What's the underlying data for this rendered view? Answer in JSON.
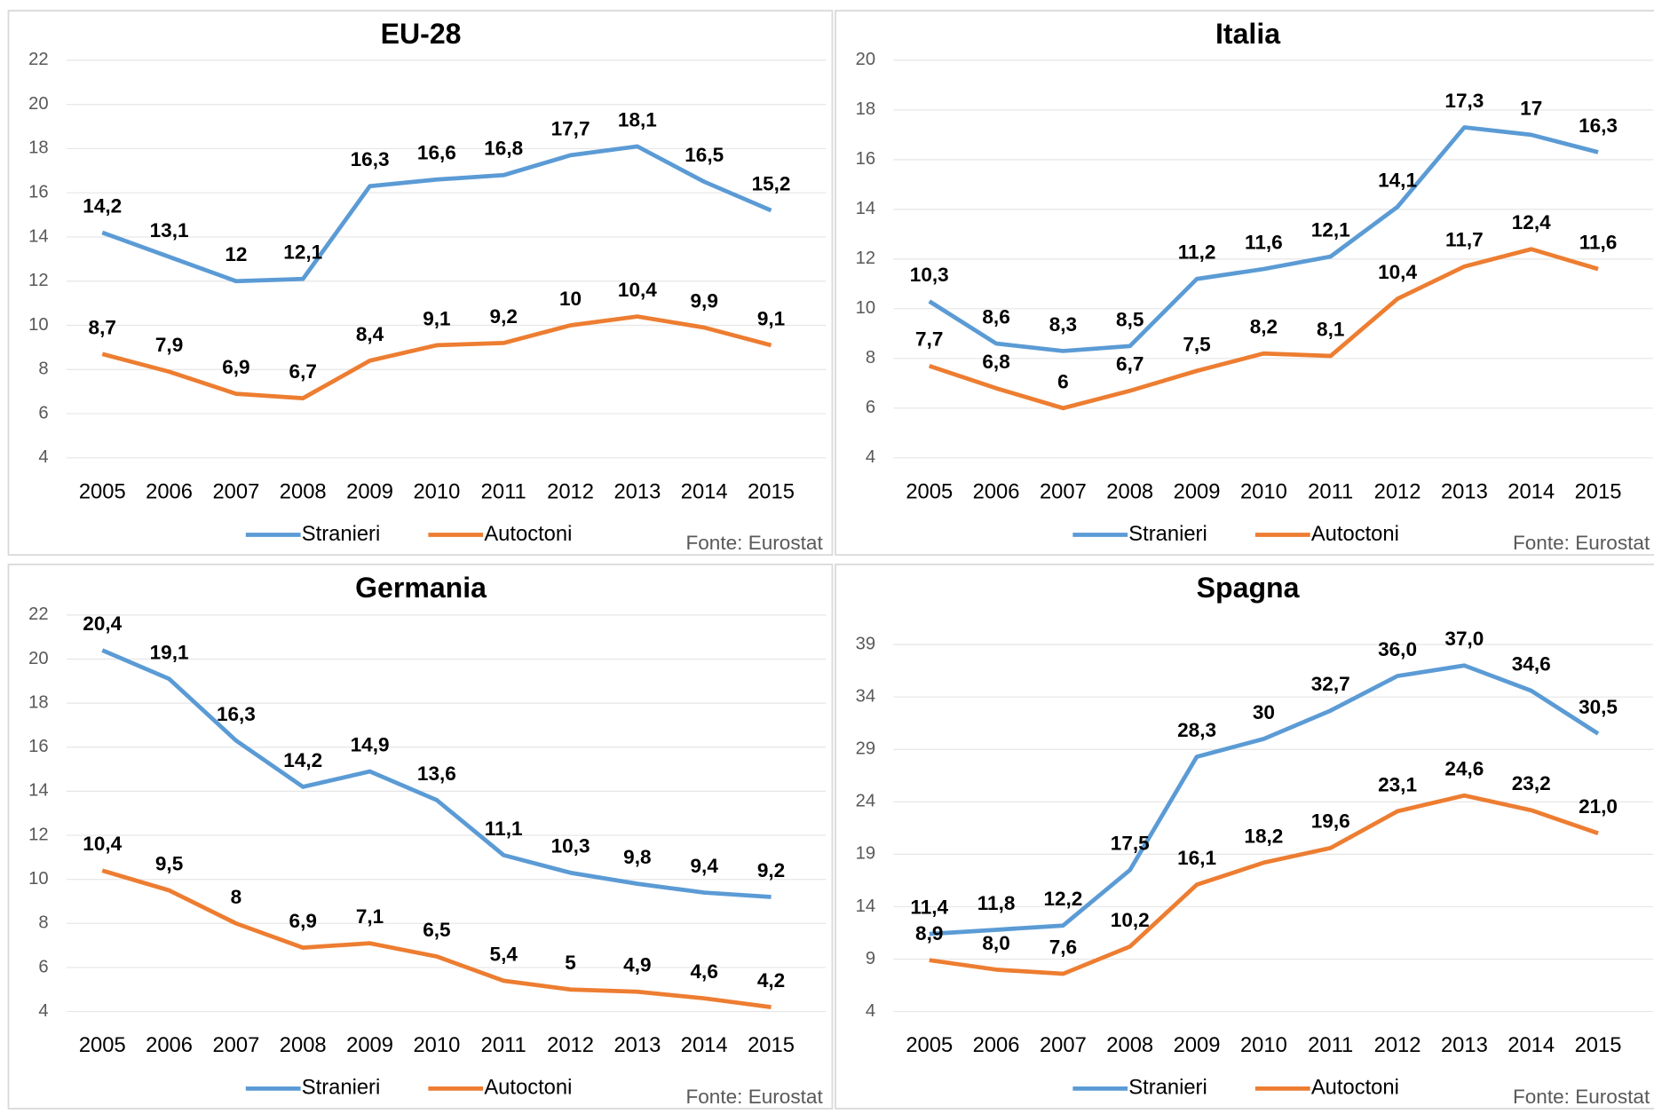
{
  "chart_data": [
    {
      "type": "line",
      "title": "EU-28",
      "note": "Fonte: Eurostat",
      "categories": [
        "2005",
        "2006",
        "2007",
        "2008",
        "2009",
        "2010",
        "2011",
        "2012",
        "2013",
        "2014",
        "2015"
      ],
      "ylim": [
        4,
        22
      ],
      "yticks": [
        4,
        6,
        8,
        10,
        12,
        14,
        16,
        18,
        20,
        22
      ],
      "legend": "bottom",
      "series": [
        {
          "name": "Stranieri",
          "color": "#5b9bd5",
          "values": [
            14.2,
            13.1,
            12,
            12.1,
            16.3,
            16.6,
            16.8,
            17.7,
            18.1,
            16.5,
            15.2
          ],
          "value_labels": [
            "14,2",
            "13,1",
            "12",
            "12,1",
            "16,3",
            "16,6",
            "16,8",
            "17,7",
            "18,1",
            "16,5",
            "15,2"
          ]
        },
        {
          "name": "Autoctoni",
          "color": "#ed7d31",
          "values": [
            8.7,
            7.9,
            6.9,
            6.7,
            8.4,
            9.1,
            9.2,
            10,
            10.4,
            9.9,
            9.1
          ],
          "value_labels": [
            "8,7",
            "7,9",
            "6,9",
            "6,7",
            "8,4",
            "9,1",
            "9,2",
            "10",
            "10,4",
            "9,9",
            "9,1"
          ]
        }
      ]
    },
    {
      "type": "line",
      "title": "Italia",
      "note": "Fonte: Eurostat",
      "categories": [
        "2005",
        "2006",
        "2007",
        "2008",
        "2009",
        "2010",
        "2011",
        "2012",
        "2013",
        "2014",
        "2015"
      ],
      "ylim": [
        4,
        20
      ],
      "yticks": [
        4,
        6,
        8,
        10,
        12,
        14,
        16,
        18,
        20
      ],
      "legend": "bottom",
      "series": [
        {
          "name": "Stranieri",
          "color": "#5b9bd5",
          "values": [
            10.3,
            8.6,
            8.3,
            8.5,
            11.2,
            11.6,
            12.1,
            14.1,
            17.3,
            17,
            16.3
          ],
          "value_labels": [
            "10,3",
            "8,6",
            "8,3",
            "8,5",
            "11,2",
            "11,6",
            "12,1",
            "14,1",
            "17,3",
            "17",
            "16,3"
          ]
        },
        {
          "name": "Autoctoni",
          "color": "#ed7d31",
          "values": [
            7.7,
            6.8,
            6,
            6.7,
            7.5,
            8.2,
            8.1,
            10.4,
            11.7,
            12.4,
            11.6
          ],
          "value_labels": [
            "7,7",
            "6,8",
            "6",
            "6,7",
            "7,5",
            "8,2",
            "8,1",
            "10,4",
            "11,7",
            "12,4",
            "11,6"
          ]
        }
      ]
    },
    {
      "type": "line",
      "title": "Germania",
      "note": "Fonte: Eurostat",
      "categories": [
        "2005",
        "2006",
        "2007",
        "2008",
        "2009",
        "2010",
        "2011",
        "2012",
        "2013",
        "2014",
        "2015"
      ],
      "ylim": [
        4,
        22
      ],
      "yticks": [
        4,
        6,
        8,
        10,
        12,
        14,
        16,
        18,
        20,
        22
      ],
      "legend": "bottom",
      "series": [
        {
          "name": "Stranieri",
          "color": "#5b9bd5",
          "values": [
            20.4,
            19.1,
            16.3,
            14.2,
            14.9,
            13.6,
            11.1,
            10.3,
            9.8,
            9.4,
            9.2
          ],
          "value_labels": [
            "20,4",
            "19,1",
            "16,3",
            "14,2",
            "14,9",
            "13,6",
            "11,1",
            "10,3",
            "9,8",
            "9,4",
            "9,2"
          ]
        },
        {
          "name": "Autoctoni",
          "color": "#ed7d31",
          "values": [
            10.4,
            9.5,
            8,
            6.9,
            7.1,
            6.5,
            5.4,
            5,
            4.9,
            4.6,
            4.2
          ],
          "value_labels": [
            "10,4",
            "9,5",
            "8",
            "6,9",
            "7,1",
            "6,5",
            "5,4",
            "5",
            "4,9",
            "4,6",
            "4,2"
          ]
        }
      ]
    },
    {
      "type": "line",
      "title": "Spagna",
      "note": "Fonte: Eurostat",
      "categories": [
        "2005",
        "2006",
        "2007",
        "2008",
        "2009",
        "2010",
        "2011",
        "2012",
        "2013",
        "2014",
        "2015"
      ],
      "ylim": [
        4,
        39
      ],
      "yticks": [
        4,
        9,
        14,
        19,
        24,
        29,
        34,
        39
      ],
      "legend": "bottom",
      "series": [
        {
          "name": "Stranieri",
          "color": "#5b9bd5",
          "values": [
            11.4,
            11.8,
            12.2,
            17.5,
            28.3,
            30,
            32.7,
            36.0,
            37.0,
            34.6,
            30.5
          ],
          "value_labels": [
            "11,4",
            "11,8",
            "12,2",
            "17,5",
            "28,3",
            "30",
            "32,7",
            "36,0",
            "37,0",
            "34,6",
            "30,5"
          ]
        },
        {
          "name": "Autoctoni",
          "color": "#ed7d31",
          "values": [
            8.9,
            8.0,
            7.6,
            10.2,
            16.1,
            18.2,
            19.6,
            23.1,
            24.6,
            23.2,
            21.0
          ],
          "value_labels": [
            "8,9",
            "8,0",
            "7,6",
            "10,2",
            "16,1",
            "18,2",
            "19,6",
            "23,1",
            "24,6",
            "23,2",
            "21,0"
          ]
        }
      ]
    }
  ]
}
